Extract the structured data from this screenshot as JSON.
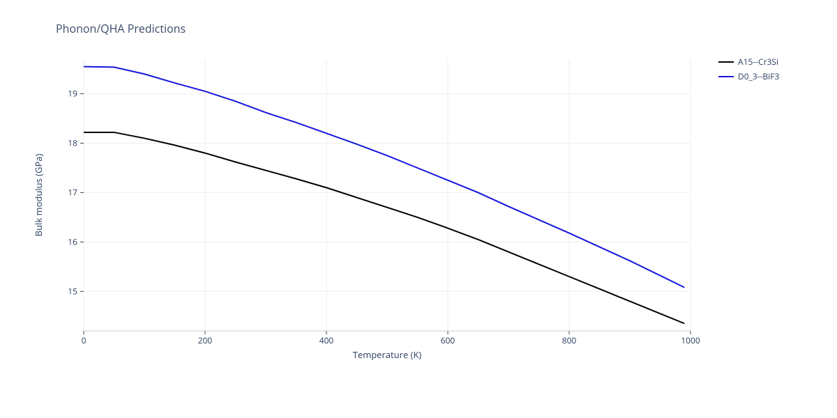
{
  "title": "Phonon/QHA Predictions",
  "xlabel": "Temperature (K)",
  "ylabel": "Bulk modulus (GPa)",
  "xlim": [
    0,
    1000
  ],
  "ylim": [
    14.2,
    19.7
  ],
  "xticks": [
    0,
    200,
    400,
    600,
    800,
    1000
  ],
  "yticks": [
    15,
    16,
    17,
    18,
    19
  ],
  "background_color": "#ffffff",
  "grid_color": "#eeeeee",
  "axis_line_color": "#cccccc",
  "tick_color": "#444444",
  "label_fontsize": 13,
  "tick_fontsize": 12,
  "title_fontsize": 16,
  "line_width": 2,
  "series": [
    {
      "name": "A15--Cr3Si",
      "color": "#000000",
      "x": [
        0,
        50,
        100,
        150,
        200,
        250,
        300,
        350,
        400,
        450,
        500,
        550,
        600,
        650,
        700,
        750,
        800,
        850,
        900,
        950,
        990
      ],
      "y": [
        18.22,
        18.22,
        18.1,
        17.96,
        17.8,
        17.62,
        17.45,
        17.28,
        17.1,
        16.9,
        16.7,
        16.5,
        16.28,
        16.05,
        15.8,
        15.55,
        15.3,
        15.05,
        14.8,
        14.55,
        14.35
      ]
    },
    {
      "name": "D0_3--BiF3",
      "color": "#1616dc",
      "x": [
        0,
        50,
        100,
        150,
        200,
        250,
        300,
        350,
        400,
        450,
        500,
        550,
        600,
        650,
        700,
        750,
        800,
        850,
        900,
        950,
        990
      ],
      "y": [
        19.55,
        19.54,
        19.4,
        19.22,
        19.05,
        18.85,
        18.62,
        18.42,
        18.2,
        17.98,
        17.75,
        17.5,
        17.25,
        17.0,
        16.72,
        16.45,
        16.18,
        15.9,
        15.62,
        15.32,
        15.08
      ]
    }
  ],
  "legend": {
    "items": [
      {
        "label": "A15--Cr3Si",
        "color": "#000000"
      },
      {
        "label": "D0_3--BiF3",
        "color": "#1616dc"
      }
    ]
  }
}
